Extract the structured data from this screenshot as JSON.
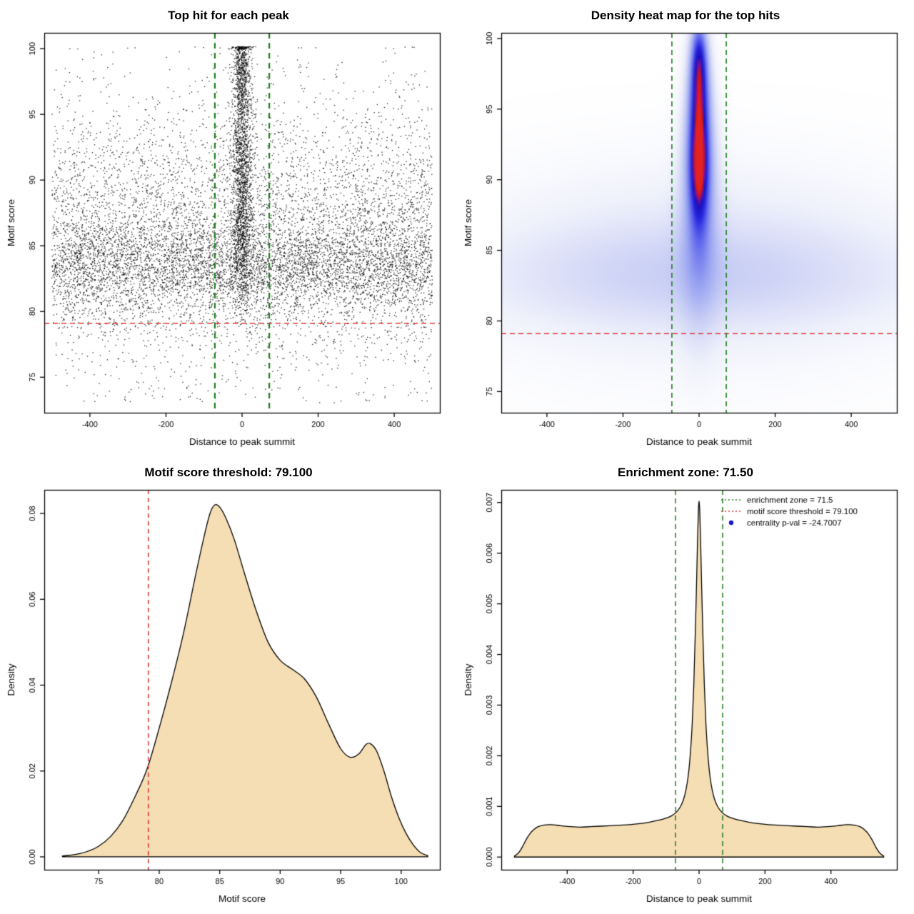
{
  "page": {
    "background": "#ffffff"
  },
  "chart_data": [
    {
      "id": "top-hits-scatter",
      "type": "scatter",
      "title": "Top hit for each peak",
      "xlabel": "Distance to peak summit",
      "ylabel": "Motif score",
      "xlim": [
        -520,
        520
      ],
      "ylim": [
        72.3,
        101.2
      ],
      "xticks": {
        "values": [
          -400,
          -200,
          0,
          200,
          400
        ],
        "labels": [
          "-400",
          "-200",
          "0",
          "200",
          "400"
        ]
      },
      "yticks": {
        "values": [
          75,
          80,
          85,
          90,
          95,
          100
        ],
        "labels": [
          "75",
          "80",
          "85",
          "90",
          "95",
          "100"
        ]
      },
      "point_color": "#000000",
      "point_size": 1.3,
      "hlines": [
        {
          "y": 79.1,
          "color": "#e03030",
          "dash": [
            7,
            5
          ],
          "width": 1.6
        }
      ],
      "vlines": [
        {
          "x": -71.5,
          "color": "#1d7d1d",
          "dash": [
            8,
            6
          ],
          "width": 2.2
        },
        {
          "x": 71.5,
          "color": "#1d7d1d",
          "dash": [
            8,
            6
          ],
          "width": 2.2
        }
      ],
      "generator": {
        "seed": 1234,
        "clip_y": [
          72.8,
          100.15
        ],
        "components": [
          {
            "n": 5200,
            "x": {
              "dist": "uniform",
              "a": -500,
              "b": 500
            },
            "y": {
              "dist": "normal",
              "mean": 83.3,
              "sd": 1.9
            }
          },
          {
            "n": 2600,
            "x": {
              "dist": "uniform",
              "a": -500,
              "b": 500
            },
            "y": {
              "dist": "normal",
              "mean": 87.3,
              "sd": 3.0
            }
          },
          {
            "n": 1100,
            "x": {
              "dist": "uniform",
              "a": -500,
              "b": 500
            },
            "y": {
              "dist": "normal",
              "mean": 92.0,
              "sd": 3.6
            }
          },
          {
            "n": 700,
            "x": {
              "dist": "uniform",
              "a": -500,
              "b": 500
            },
            "y": {
              "dist": "normal",
              "mean": 79.2,
              "sd": 2.1
            }
          },
          {
            "n": 160,
            "x": {
              "dist": "uniform",
              "a": -500,
              "b": 500
            },
            "y": {
              "dist": "uniform",
              "a": 73.0,
              "b": 77.5
            }
          },
          {
            "n": 1500,
            "x": {
              "dist": "normal",
              "mean": 0,
              "sd": 14
            },
            "y": {
              "dist": "normal",
              "mean": 92.0,
              "sd": 4.6
            }
          },
          {
            "n": 380,
            "x": {
              "dist": "normal",
              "mean": 0,
              "sd": 10
            },
            "y": {
              "dist": "normal",
              "mean": 98.6,
              "sd": 1.4
            }
          },
          {
            "n": 520,
            "x": {
              "dist": "normal",
              "mean": 0,
              "sd": 13
            },
            "y": {
              "dist": "normal",
              "mean": 85.0,
              "sd": 2.6
            }
          }
        ]
      }
    },
    {
      "id": "top-hits-heatmap",
      "type": "heatmap",
      "title": "Density heat map for the top hits",
      "xlabel": "Distance to peak summit",
      "ylabel": "Motif score",
      "xlim": [
        -520,
        520
      ],
      "ylim": [
        73.5,
        100.4
      ],
      "xticks": {
        "values": [
          -400,
          -200,
          0,
          200,
          400
        ],
        "labels": [
          "-400",
          "-200",
          "0",
          "200",
          "400"
        ]
      },
      "yticks": {
        "values": [
          75,
          80,
          85,
          90,
          95,
          100
        ],
        "labels": [
          "75",
          "80",
          "85",
          "90",
          "95",
          "100"
        ]
      },
      "scale_max": 2.5,
      "colormap": [
        [
          0.0,
          "#ffffff"
        ],
        [
          0.08,
          "#eff1fb"
        ],
        [
          0.22,
          "#c9cff5"
        ],
        [
          0.4,
          "#95a0f1"
        ],
        [
          0.58,
          "#5a60ec"
        ],
        [
          0.72,
          "#2525dd"
        ],
        [
          0.84,
          "#1b10b8"
        ],
        [
          0.9,
          "#7a0f9e"
        ],
        [
          0.95,
          "#cf1717"
        ],
        [
          1.0,
          "#e32222"
        ]
      ],
      "kernels": [
        {
          "x": 0,
          "y": 83.0,
          "sx": 430,
          "sy": 2.6,
          "amp": 0.3
        },
        {
          "x": 0,
          "y": 86.0,
          "sx": 400,
          "sy": 4.0,
          "amp": 0.16
        },
        {
          "x": 0,
          "y": 82.0,
          "sx": 430,
          "sy": 5.5,
          "amp": 0.13
        },
        {
          "x": 0,
          "y": 87.5,
          "sx": 34,
          "sy": 5.5,
          "amp": 0.55
        },
        {
          "x": 0,
          "y": 92.3,
          "sx": 24,
          "sy": 4.0,
          "amp": 1.25
        },
        {
          "x": 0,
          "y": 91.3,
          "sx": 16,
          "sy": 2.8,
          "amp": 1.1
        },
        {
          "x": 0,
          "y": 97.3,
          "sx": 17,
          "sy": 2.4,
          "amp": 1.3
        },
        {
          "x": 0,
          "y": 99.2,
          "sx": 13,
          "sy": 1.6,
          "amp": 0.6
        }
      ],
      "hlines": [
        {
          "y": 79.1,
          "color": "#e03030",
          "dash": [
            7,
            5
          ],
          "width": 1.4
        }
      ],
      "vlines": [
        {
          "x": -71.5,
          "color": "#1d7d1d",
          "dash": [
            7,
            5
          ],
          "width": 1.6
        },
        {
          "x": 71.5,
          "color": "#1d7d1d",
          "dash": [
            7,
            5
          ],
          "width": 1.6
        }
      ]
    },
    {
      "id": "motif-score-density",
      "type": "density",
      "title": "Motif score threshold: 79.100",
      "xlabel": "Motif score",
      "ylabel": "Density",
      "xlim": [
        70.5,
        103.2
      ],
      "ylim": [
        -0.003,
        0.0855
      ],
      "xticks": {
        "values": [
          75,
          80,
          85,
          90,
          95,
          100
        ],
        "labels": [
          "75",
          "80",
          "85",
          "90",
          "95",
          "100"
        ]
      },
      "yticks": {
        "values": [
          0,
          0.02,
          0.04,
          0.06,
          0.08
        ],
        "labels": [
          "0.00",
          "0.02",
          "0.04",
          "0.06",
          "0.08"
        ]
      },
      "fill": "#f5deb3",
      "stroke": "#000000",
      "vlines": [
        {
          "x": 79.1,
          "color": "#e03030",
          "dash": [
            6,
            5
          ],
          "width": 1.5
        }
      ],
      "points": [
        [
          72.0,
          0.0002
        ],
        [
          73.0,
          0.0005
        ],
        [
          74.0,
          0.0012
        ],
        [
          75.0,
          0.0025
        ],
        [
          76.0,
          0.0048
        ],
        [
          77.0,
          0.0085
        ],
        [
          78.0,
          0.014
        ],
        [
          79.0,
          0.0205
        ],
        [
          80.0,
          0.03
        ],
        [
          81.0,
          0.0405
        ],
        [
          82.0,
          0.052
        ],
        [
          83.0,
          0.0655
        ],
        [
          83.7,
          0.0745
        ],
        [
          84.2,
          0.08
        ],
        [
          84.6,
          0.082
        ],
        [
          85.0,
          0.0815
        ],
        [
          85.5,
          0.079
        ],
        [
          86.2,
          0.074
        ],
        [
          87.0,
          0.0665
        ],
        [
          88.0,
          0.0575
        ],
        [
          89.0,
          0.05
        ],
        [
          90.0,
          0.0458
        ],
        [
          91.0,
          0.0437
        ],
        [
          92.0,
          0.0415
        ],
        [
          93.0,
          0.0372
        ],
        [
          94.0,
          0.031
        ],
        [
          95.0,
          0.0252
        ],
        [
          95.8,
          0.0232
        ],
        [
          96.5,
          0.024
        ],
        [
          97.1,
          0.0262
        ],
        [
          97.5,
          0.0263
        ],
        [
          98.0,
          0.0245
        ],
        [
          98.6,
          0.0198
        ],
        [
          99.2,
          0.014
        ],
        [
          99.8,
          0.0092
        ],
        [
          100.4,
          0.0055
        ],
        [
          101.0,
          0.0028
        ],
        [
          101.6,
          0.001
        ],
        [
          102.2,
          0.0003
        ]
      ]
    },
    {
      "id": "summit-distance-density",
      "type": "density",
      "title": "Enrichment zone: 71.50",
      "xlabel": "Distance to peak summit",
      "ylabel": "Density",
      "xlim": [
        -600,
        600
      ],
      "ylim": [
        -0.00025,
        0.00725
      ],
      "xticks": {
        "values": [
          -400,
          -200,
          0,
          200,
          400
        ],
        "labels": [
          "-400",
          "-200",
          "0",
          "200",
          "400"
        ]
      },
      "yticks": {
        "values": [
          0,
          0.001,
          0.002,
          0.003,
          0.004,
          0.005,
          0.006,
          0.007
        ],
        "labels": [
          "0.000",
          "0.001",
          "0.002",
          "0.003",
          "0.004",
          "0.005",
          "0.006",
          "0.007"
        ]
      },
      "fill": "#f5deb3",
      "stroke": "#000000",
      "vlines": [
        {
          "x": -71.5,
          "color": "#1d7d1d",
          "dash": [
            7,
            5
          ],
          "width": 1.5
        },
        {
          "x": 71.5,
          "color": "#1d7d1d",
          "dash": [
            7,
            5
          ],
          "width": 1.5
        }
      ],
      "legend": {
        "items": [
          {
            "type": "line",
            "color": "#1d7d1d",
            "dash": [
              2,
              3
            ],
            "label": "enrichment zone = 71.5"
          },
          {
            "type": "line",
            "color": "#e03030",
            "dash": [
              2,
              3
            ],
            "label": "motif score threshold = 79.100"
          },
          {
            "type": "point",
            "color": "#1515c8",
            "label": "centrality p-val = -24.7007"
          }
        ]
      },
      "points": [
        [
          -560,
          2e-05
        ],
        [
          -548,
          8e-05
        ],
        [
          -536,
          0.0002
        ],
        [
          -524,
          0.00035
        ],
        [
          -512,
          0.00047
        ],
        [
          -500,
          0.00055
        ],
        [
          -488,
          0.0006
        ],
        [
          -472,
          0.00063
        ],
        [
          -450,
          0.00064
        ],
        [
          -420,
          0.00062
        ],
        [
          -390,
          0.0006
        ],
        [
          -360,
          0.00059
        ],
        [
          -330,
          0.0006
        ],
        [
          -300,
          0.00061
        ],
        [
          -270,
          0.00062
        ],
        [
          -240,
          0.00063
        ],
        [
          -210,
          0.00064
        ],
        [
          -180,
          0.00066
        ],
        [
          -150,
          0.00069
        ],
        [
          -120,
          0.00073
        ],
        [
          -100,
          0.00077
        ],
        [
          -85,
          0.00081
        ],
        [
          -70,
          0.00088
        ],
        [
          -58,
          0.00098
        ],
        [
          -48,
          0.00112
        ],
        [
          -40,
          0.00132
        ],
        [
          -33,
          0.0016
        ],
        [
          -27,
          0.002
        ],
        [
          -21,
          0.0026
        ],
        [
          -16,
          0.0034
        ],
        [
          -12,
          0.0043
        ],
        [
          -8,
          0.0053
        ],
        [
          -5,
          0.00615
        ],
        [
          -2,
          0.00685
        ],
        [
          0,
          0.00703
        ],
        [
          2,
          0.00685
        ],
        [
          5,
          0.00615
        ],
        [
          8,
          0.0053
        ],
        [
          12,
          0.0043
        ],
        [
          16,
          0.0034
        ],
        [
          21,
          0.0026
        ],
        [
          27,
          0.002
        ],
        [
          33,
          0.0016
        ],
        [
          40,
          0.00132
        ],
        [
          48,
          0.00112
        ],
        [
          58,
          0.00098
        ],
        [
          70,
          0.00088
        ],
        [
          85,
          0.00081
        ],
        [
          100,
          0.00077
        ],
        [
          120,
          0.00073
        ],
        [
          150,
          0.00069
        ],
        [
          180,
          0.00066
        ],
        [
          210,
          0.00064
        ],
        [
          240,
          0.00063
        ],
        [
          270,
          0.00062
        ],
        [
          300,
          0.00061
        ],
        [
          330,
          0.0006
        ],
        [
          360,
          0.00059
        ],
        [
          390,
          0.0006
        ],
        [
          420,
          0.00062
        ],
        [
          450,
          0.00064
        ],
        [
          472,
          0.00063
        ],
        [
          488,
          0.0006
        ],
        [
          500,
          0.00055
        ],
        [
          512,
          0.00047
        ],
        [
          524,
          0.00035
        ],
        [
          536,
          0.0002
        ],
        [
          548,
          8e-05
        ],
        [
          560,
          2e-05
        ]
      ]
    }
  ]
}
